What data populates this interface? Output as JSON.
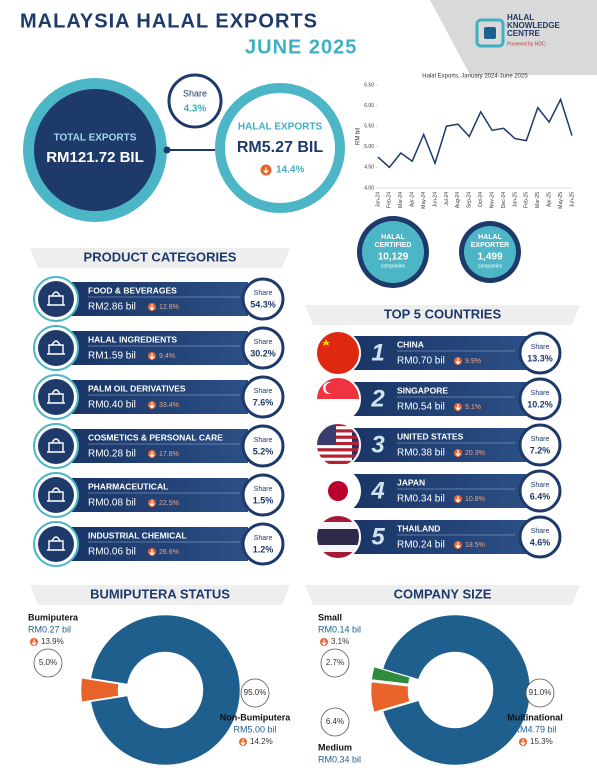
{
  "header": {
    "title": "MALAYSIA HALAL EXPORTS",
    "period": "JUNE 2025",
    "logo": {
      "lines": [
        "HALAL",
        "KNOWLEDGE",
        "CENTRE"
      ],
      "tagline": "Powered by HDC"
    }
  },
  "summary": {
    "total_exports": {
      "label": "TOTAL EXPORTS",
      "value": "RM121.72 BIL"
    },
    "share": {
      "label": "Share",
      "value": "4.3%"
    },
    "halal_exports": {
      "label": "HALAL EXPORTS",
      "value": "RM5.27 BIL",
      "change": "14.4%"
    },
    "halal_certified": {
      "label": [
        "HALAL",
        "CERTIFIED"
      ],
      "value": "10,129",
      "unit": "companies"
    },
    "halal_exporter": {
      "label": [
        "HALAL",
        "EXPORTER"
      ],
      "value": "1,499",
      "unit": "companies"
    }
  },
  "product_categories": {
    "title": "PRODUCT CATEGORIES",
    "share_label": "Share",
    "items": [
      {
        "name": "FOOD & BEVERAGES",
        "value": "RM2.86 bil",
        "change": "12.6%",
        "share": "54.3%"
      },
      {
        "name": "HALAL INGREDIENTS",
        "value": "RM1.59 bil",
        "change": "9.4%",
        "share": "30.2%"
      },
      {
        "name": "PALM OIL DERIVATIVES",
        "value": "RM0.40 bil",
        "change": "33.4%",
        "share": "7.6%"
      },
      {
        "name": "COSMETICS & PERSONAL CARE",
        "value": "RM0.28 bil",
        "change": "17.8%",
        "share": "5.2%"
      },
      {
        "name": "PHARMACEUTICAL",
        "value": "RM0.08 bil",
        "change": "22.5%",
        "share": "1.5%"
      },
      {
        "name": "INDUSTRIAL CHEMICAL",
        "value": "RM0.06 bil",
        "change": "26.6%",
        "share": "1.2%"
      }
    ]
  },
  "top_countries": {
    "title": "TOP 5 COUNTRIES",
    "share_label": "Share",
    "items": [
      {
        "rank": "1",
        "name": "CHINA",
        "value": "RM0.70 bil",
        "change": "9.9%",
        "share": "13.3%"
      },
      {
        "rank": "2",
        "name": "SINGAPORE",
        "value": "RM0.54 bil",
        "change": "9.1%",
        "share": "10.2%"
      },
      {
        "rank": "3",
        "name": "UNITED STATES",
        "value": "RM0.38 bil",
        "change": "20.3%",
        "share": "7.2%"
      },
      {
        "rank": "4",
        "name": "JAPAN",
        "value": "RM0.34 bil",
        "change": "10.8%",
        "share": "6.4%"
      },
      {
        "rank": "5",
        "name": "THAILAND",
        "value": "RM0.24 bil",
        "change": "18.5%",
        "share": "4.6%"
      }
    ]
  },
  "chart_data": [
    {
      "type": "line",
      "title": "Halal Exports, January 2024-June 2025",
      "y_label": "RM bil",
      "categories": [
        "Jan-24",
        "Feb-24",
        "Mar-24",
        "Apr-24",
        "May-24",
        "Jun-24",
        "Jul-24",
        "Aug-24",
        "Sep-24",
        "Oct-24",
        "Nov-24",
        "Dec-24",
        "Jan-25",
        "Feb-25",
        "Mar-25",
        "Apr-25",
        "May-25",
        "Jun-25"
      ],
      "values": [
        4.75,
        4.5,
        4.85,
        4.65,
        5.3,
        4.6,
        5.5,
        5.55,
        5.25,
        5.85,
        5.4,
        5.45,
        5.2,
        5.15,
        5.95,
        5.6,
        6.15,
        5.27
      ],
      "color": "#1d3a6b",
      "ylim": [
        4,
        6.5
      ],
      "yticks": [
        {
          "value": 4,
          "label": "4.00"
        },
        {
          "value": 4.5,
          "label": "4.50"
        },
        {
          "value": 5,
          "label": "5.00"
        },
        {
          "value": 5.5,
          "label": "5.50"
        },
        {
          "value": 6,
          "label": "6.00"
        },
        {
          "value": 6.5,
          "label": "6.50"
        }
      ],
      "grid": false
    },
    {
      "type": "pie",
      "title": "BUMIPUTERA STATUS",
      "categories": [
        "Bumiputera",
        "Non-Bumiputera"
      ],
      "values": [
        5.0,
        95.0
      ],
      "value_labels": [
        "5.0%",
        "95.0%"
      ],
      "amounts": [
        "RM0.27 bil",
        "RM5.00 bil"
      ],
      "changes": [
        "13.9%",
        "14.2%"
      ],
      "colors": [
        "#e8632a",
        "#1f5f8e"
      ]
    },
    {
      "type": "pie",
      "title": "COMPANY SIZE",
      "categories": [
        "Small",
        "Medium",
        "Multinational"
      ],
      "values": [
        2.7,
        6.4,
        91.0
      ],
      "value_labels": [
        "2.7%",
        "6.4%",
        "91.0%"
      ],
      "amounts": [
        "RM0.14 bil",
        "RM0.34 bil",
        "RM4.79 bil"
      ],
      "changes": [
        "3.1%",
        null,
        "15.3%"
      ],
      "colors": [
        "#2e8b3c",
        "#e8632a",
        "#1f5f8e"
      ]
    }
  ]
}
